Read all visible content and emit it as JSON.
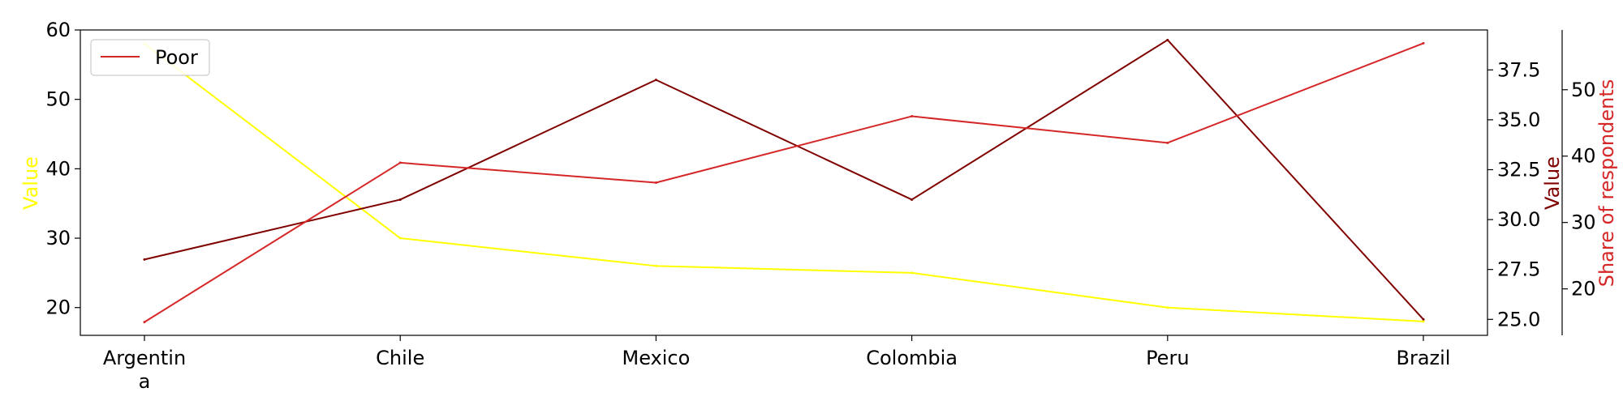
{
  "chart_data": {
    "type": "line",
    "categories": [
      "Argentina",
      "Chile",
      "Mexico",
      "Colombia",
      "Peru",
      "Brazil"
    ],
    "category_display": [
      [
        "Argentin",
        "a"
      ],
      [
        "Chile"
      ],
      [
        "Mexico"
      ],
      [
        "Colombia"
      ],
      [
        "Peru"
      ],
      [
        "Brazil"
      ]
    ],
    "axes": {
      "left": {
        "label": "Value",
        "color": "#ffff00",
        "ylim": [
          16,
          60
        ],
        "ticks": [
          20,
          30,
          40,
          50,
          60
        ],
        "tick_labels": [
          "20",
          "30",
          "40",
          "50",
          "60"
        ]
      },
      "right1": {
        "label": "Value",
        "color": "#800000",
        "ylim": [
          24.2,
          39.5
        ],
        "ticks": [
          25.0,
          27.5,
          30.0,
          32.5,
          35.0,
          37.5
        ],
        "tick_labels": [
          "25.0",
          "27.5",
          "30.0",
          "32.5",
          "35.0",
          "37.5"
        ]
      },
      "right2": {
        "label": "Share of respondents",
        "color": "#d62728",
        "ylim": [
          13,
          59
        ],
        "ticks": [
          20,
          30,
          40,
          50
        ],
        "tick_labels": [
          "20",
          "30",
          "40",
          "50"
        ]
      }
    },
    "series": [
      {
        "axis": "left",
        "color": "#ffff00",
        "values": [
          58,
          30,
          26,
          25,
          20,
          18
        ]
      },
      {
        "axis": "right1",
        "color": "#800000",
        "values": [
          28.0,
          31.0,
          37.0,
          31.0,
          39.0,
          25.0
        ]
      },
      {
        "name": "Poor",
        "axis": "right2",
        "color": "#d62728",
        "values": [
          15,
          39,
          36,
          46,
          42,
          57
        ]
      }
    ],
    "legend": {
      "position": "top-left",
      "entries": [
        "Poor"
      ]
    },
    "grid": false
  }
}
